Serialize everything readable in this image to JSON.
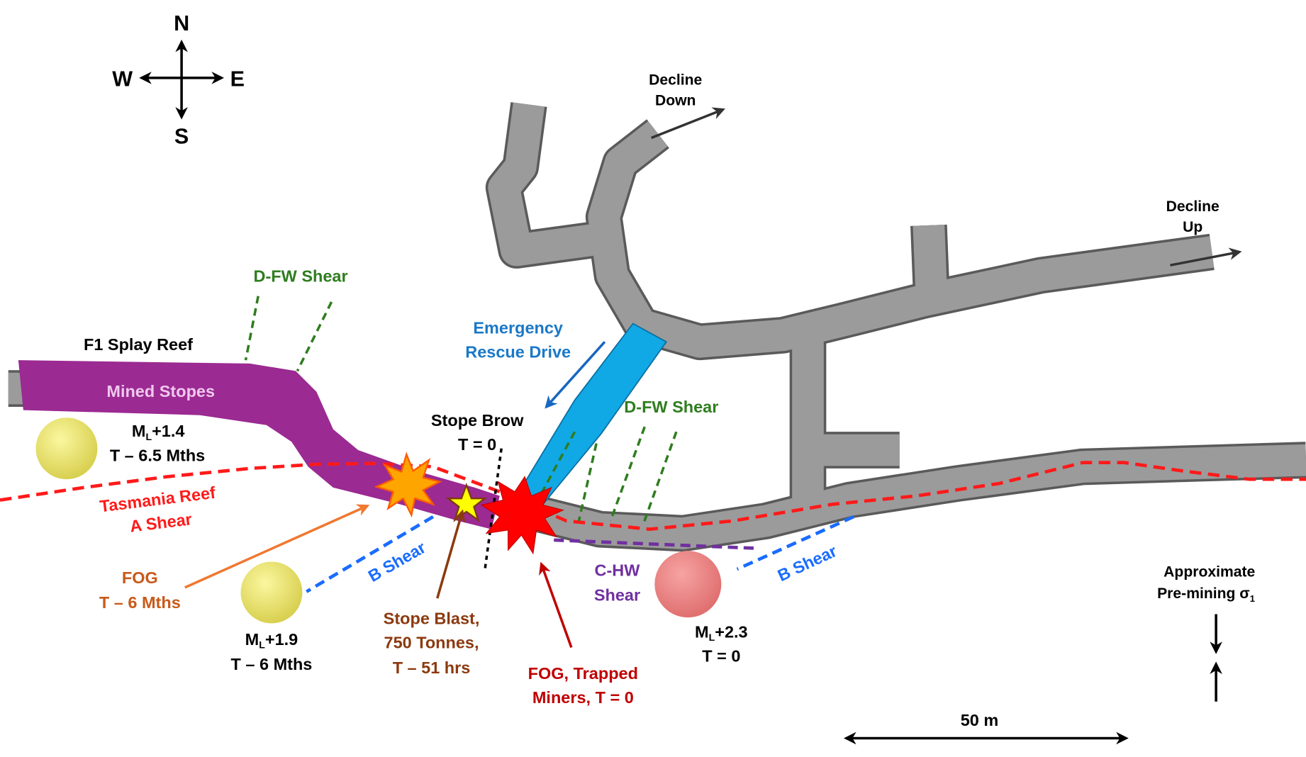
{
  "compass": {
    "n": "N",
    "s": "S",
    "e": "E",
    "w": "W"
  },
  "labels": {
    "decline_down_1": "Decline",
    "decline_down_2": "Down",
    "decline_up_1": "Decline",
    "decline_up_2": "Up",
    "dfw_shear_left": "D-FW Shear",
    "dfw_shear_right": "D-FW Shear",
    "f1_splay_reef": "F1 Splay Reef",
    "mined_stopes": "Mined Stopes",
    "emergency_1": "Emergency",
    "emergency_2": "Rescue Drive",
    "stope_brow_1": "Stope Brow",
    "stope_brow_2": "T = 0",
    "ml14_mag": "M",
    "ml14_sub": "L",
    "ml14_val": "+1.4",
    "ml14_time": "T – 6.5 Mths",
    "tasmania_1": "Tasmania Reef",
    "tasmania_2": "A Shear",
    "fog_1": "FOG",
    "fog_2": "T – 6 Mths",
    "b_shear_left": "B Shear",
    "b_shear_right": "B Shear",
    "ml19_mag": "M",
    "ml19_sub": "L",
    "ml19_val": "+1.9",
    "ml19_time": "T – 6 Mths",
    "blast_1": "Stope Blast,",
    "blast_2": "750 Tonnes,",
    "blast_3": "T – 51 hrs",
    "trapped_1": "FOG, Trapped",
    "trapped_2": "Miners, T = 0",
    "chw_1": "C-HW",
    "chw_2": "Shear",
    "ml23_mag": "M",
    "ml23_sub": "L",
    "ml23_val": "+2.3",
    "ml23_time": "T = 0",
    "stress_1": "Approximate",
    "stress_2": "Pre-mining σ",
    "stress_sub": "1",
    "scale": "50 m"
  },
  "colors": {
    "tunnel": "#9b9b9b",
    "stopes": "#9b2a92",
    "rescue": "#11a8e6",
    "reef": "#ff1a1a",
    "dfw": "#2f7d1f",
    "bshear": "#1a6cff",
    "chw": "#7030a0",
    "event_yellow": "#ede86a",
    "event_pink": "#f08a8a"
  }
}
